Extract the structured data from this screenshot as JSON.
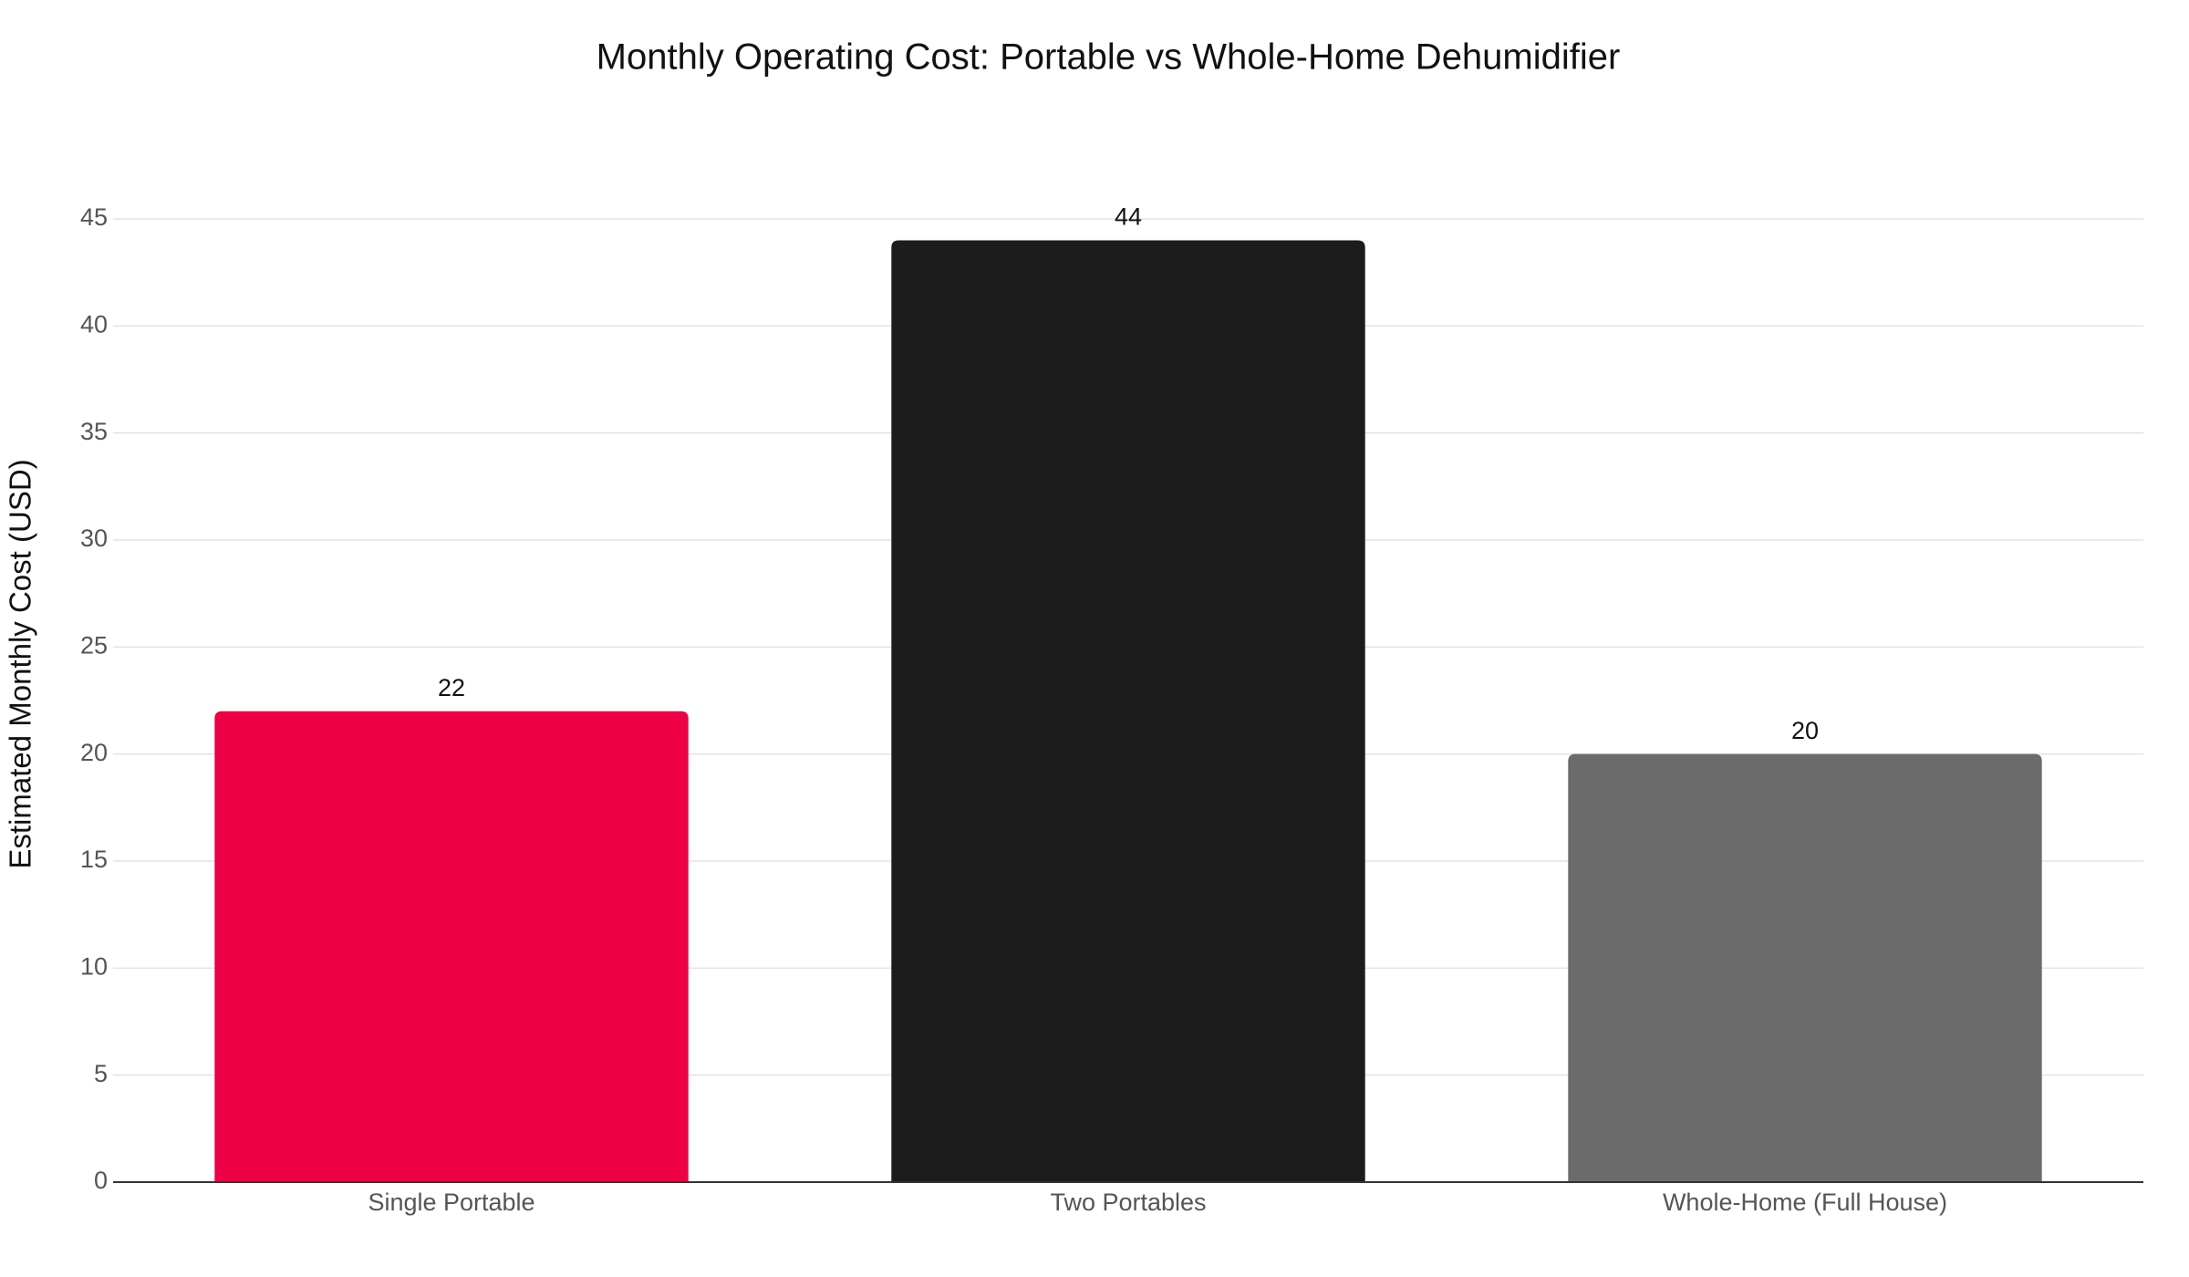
{
  "chart_data": {
    "type": "bar",
    "title": "Monthly Operating Cost: Portable vs Whole-Home Dehumidifier",
    "y_label": "Estimated Monthly Cost (USD)",
    "categories": [
      "Single Portable",
      "Two Portables",
      "Whole-Home (Full House)"
    ],
    "values": [
      22,
      44,
      20
    ],
    "colors": [
      "#ee0046",
      "#1c1c1c",
      "#6b6b6b"
    ],
    "ylim": [
      0,
      45
    ],
    "yticks": [
      0,
      5,
      10,
      15,
      20,
      25,
      30,
      35,
      40,
      45
    ],
    "grid": true
  }
}
